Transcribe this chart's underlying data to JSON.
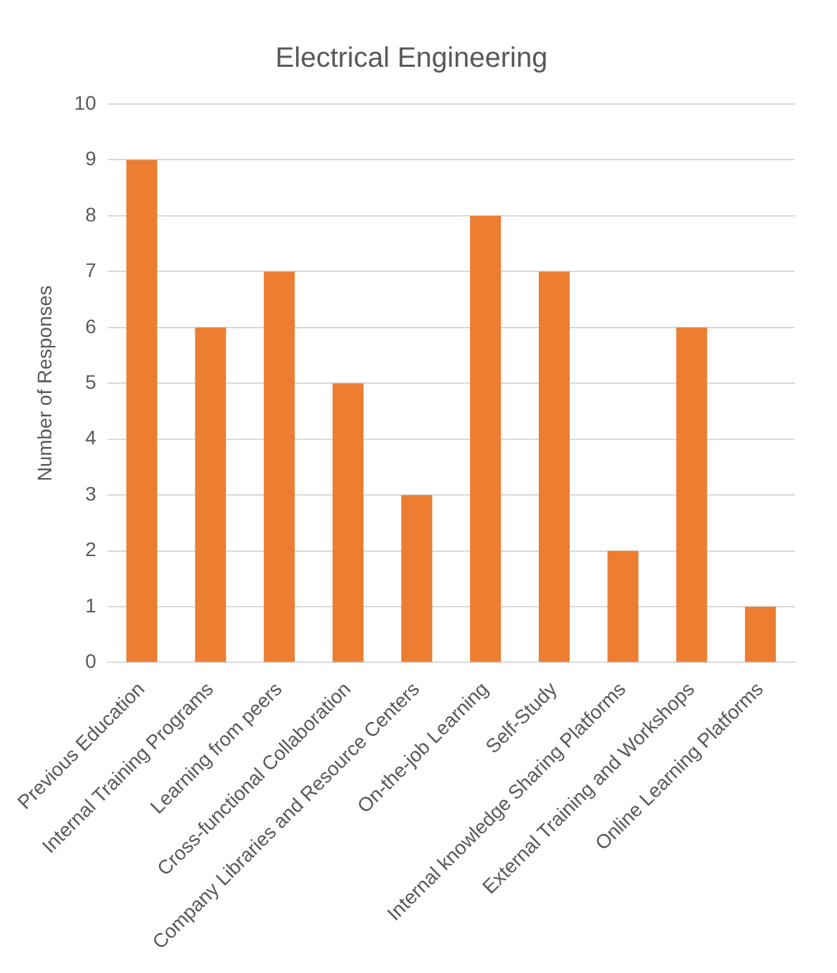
{
  "chart_data": {
    "type": "bar",
    "title": "Electrical Engineering",
    "ylabel": "Number of Responses",
    "categories": [
      "Previous Education",
      "Internal Training Programs",
      "Learning from peers",
      "Cross-functional Collaboration",
      "Company Libraries and Resource Centers",
      "On-the-job Learning",
      "Self-Study",
      "Internal knowledge Sharing Platforms",
      "External Training and Workshops",
      "Online Learning Platforms"
    ],
    "values": [
      9,
      6,
      7,
      5,
      3,
      8,
      7,
      2,
      6,
      1
    ],
    "color": "#ed7d31",
    "ylim": [
      0,
      10
    ],
    "yticks": [
      0,
      1,
      2,
      3,
      4,
      5,
      6,
      7,
      8,
      9,
      10
    ],
    "grid": "y",
    "legend": false
  }
}
